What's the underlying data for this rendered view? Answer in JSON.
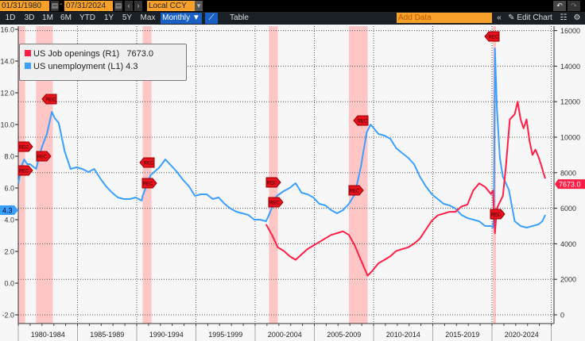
{
  "toolbar": {
    "start_date": "01/31/1980",
    "end_date": "07/31/2024",
    "dash": "-",
    "currency": "Local CCY",
    "ranges": [
      "1D",
      "3D",
      "1M",
      "6M",
      "YTD",
      "1Y",
      "5Y",
      "Max"
    ],
    "frequency": "Monthly ▼",
    "table": "Table",
    "add_data_placeholder": "Add Data",
    "edit_chart": "Edit Chart"
  },
  "legend": [
    {
      "label": "US Job openings (R1)",
      "value": "7673.0",
      "color": "#ff1e46"
    },
    {
      "label": "US unemployment (L1)",
      "value": "4.3",
      "color": "#3aa0ff"
    }
  ],
  "chart_data": {
    "type": "line",
    "x_tick_labels": [
      "1980-1984",
      "1985-1989",
      "1990-1994",
      "1995-1999",
      "2000-2004",
      "2005-2009",
      "2010-2014",
      "2015-2019",
      "2020-2024"
    ],
    "xlim": [
      "1980-01",
      "2024-12"
    ],
    "left_axis": {
      "ylim": [
        -2,
        16
      ],
      "ticks": [
        "16.0",
        "14.0",
        "12.0",
        "10.0",
        "8.0",
        "6.0",
        "4.0",
        "2.0",
        "0.0",
        "-2.0"
      ],
      "last_label": "4.3"
    },
    "right_axis": {
      "ylim": [
        0,
        16000
      ],
      "ticks": [
        "16000",
        "14000",
        "12000",
        "10000",
        "8000",
        "6000",
        "4000",
        "2000",
        "0"
      ],
      "last_label": "7673.0"
    },
    "grid": true,
    "legend_placement": "top-left",
    "recession_label": "REC",
    "recessions": [
      [
        "1980-01",
        "1980-07"
      ],
      [
        "1981-07",
        "1982-11"
      ],
      [
        "1990-07",
        "1991-03"
      ],
      [
        "2001-03",
        "2001-11"
      ],
      [
        "2007-12",
        "2009-06"
      ],
      [
        "2020-02",
        "2020-04"
      ]
    ],
    "series": [
      {
        "name": "US unemployment (L1)",
        "axis": "left",
        "color": "#3aa0ff",
        "points": [
          [
            "1980-01",
            6.3
          ],
          [
            "1980-05",
            7.5
          ],
          [
            "1980-07",
            7.8
          ],
          [
            "1980-10",
            7.5
          ],
          [
            "1981-01",
            7.5
          ],
          [
            "1981-07",
            7.2
          ],
          [
            "1982-01",
            8.6
          ],
          [
            "1982-06",
            9.4
          ],
          [
            "1982-11",
            10.8
          ],
          [
            "1983-02",
            10.4
          ],
          [
            "1983-06",
            10.1
          ],
          [
            "1983-12",
            8.3
          ],
          [
            "1984-06",
            7.2
          ],
          [
            "1984-12",
            7.3
          ],
          [
            "1985-06",
            7.2
          ],
          [
            "1985-12",
            7.0
          ],
          [
            "1986-06",
            7.2
          ],
          [
            "1986-12",
            6.6
          ],
          [
            "1987-06",
            6.1
          ],
          [
            "1987-12",
            5.7
          ],
          [
            "1988-06",
            5.4
          ],
          [
            "1988-12",
            5.3
          ],
          [
            "1989-06",
            5.3
          ],
          [
            "1989-12",
            5.4
          ],
          [
            "1990-06",
            5.2
          ],
          [
            "1990-07",
            5.5
          ],
          [
            "1991-03",
            6.8
          ],
          [
            "1991-12",
            7.3
          ],
          [
            "1992-06",
            7.8
          ],
          [
            "1992-12",
            7.4
          ],
          [
            "1993-06",
            7.0
          ],
          [
            "1993-12",
            6.5
          ],
          [
            "1994-06",
            6.1
          ],
          [
            "1994-12",
            5.5
          ],
          [
            "1995-06",
            5.6
          ],
          [
            "1995-12",
            5.6
          ],
          [
            "1996-06",
            5.3
          ],
          [
            "1996-12",
            5.4
          ],
          [
            "1997-06",
            5.0
          ],
          [
            "1997-12",
            4.7
          ],
          [
            "1998-06",
            4.5
          ],
          [
            "1998-12",
            4.4
          ],
          [
            "1999-06",
            4.3
          ],
          [
            "1999-12",
            4.0
          ],
          [
            "2000-06",
            4.0
          ],
          [
            "2000-12",
            3.9
          ],
          [
            "2001-03",
            4.3
          ],
          [
            "2001-11",
            5.5
          ],
          [
            "2002-06",
            5.8
          ],
          [
            "2002-12",
            6.0
          ],
          [
            "2003-06",
            6.3
          ],
          [
            "2003-12",
            5.7
          ],
          [
            "2004-06",
            5.6
          ],
          [
            "2004-12",
            5.4
          ],
          [
            "2005-06",
            5.0
          ],
          [
            "2005-12",
            4.9
          ],
          [
            "2006-06",
            4.6
          ],
          [
            "2006-12",
            4.4
          ],
          [
            "2007-06",
            4.6
          ],
          [
            "2007-12",
            5.0
          ],
          [
            "2008-06",
            5.6
          ],
          [
            "2008-12",
            7.3
          ],
          [
            "2009-06",
            9.5
          ],
          [
            "2009-10",
            10.0
          ],
          [
            "2010-06",
            9.4
          ],
          [
            "2010-12",
            9.3
          ],
          [
            "2011-06",
            9.1
          ],
          [
            "2011-12",
            8.5
          ],
          [
            "2012-06",
            8.2
          ],
          [
            "2012-12",
            7.9
          ],
          [
            "2013-06",
            7.5
          ],
          [
            "2013-12",
            6.7
          ],
          [
            "2014-06",
            6.1
          ],
          [
            "2014-12",
            5.6
          ],
          [
            "2015-06",
            5.3
          ],
          [
            "2015-12",
            5.0
          ],
          [
            "2016-06",
            4.9
          ],
          [
            "2016-12",
            4.7
          ],
          [
            "2017-06",
            4.3
          ],
          [
            "2017-12",
            4.1
          ],
          [
            "2018-06",
            4.0
          ],
          [
            "2018-12",
            3.9
          ],
          [
            "2019-06",
            3.6
          ],
          [
            "2019-12",
            3.6
          ],
          [
            "2020-02",
            3.5
          ],
          [
            "2020-03",
            4.4
          ],
          [
            "2020-04",
            14.8
          ],
          [
            "2020-06",
            11.0
          ],
          [
            "2020-09",
            7.9
          ],
          [
            "2020-12",
            6.7
          ],
          [
            "2021-06",
            5.9
          ],
          [
            "2021-12",
            3.9
          ],
          [
            "2022-06",
            3.6
          ],
          [
            "2022-12",
            3.5
          ],
          [
            "2023-06",
            3.6
          ],
          [
            "2023-12",
            3.7
          ],
          [
            "2024-04",
            3.9
          ],
          [
            "2024-07",
            4.3
          ]
        ]
      },
      {
        "name": "US Job openings (R1)",
        "axis": "right",
        "color": "#ff1e46",
        "points": [
          [
            "2000-12",
            5100
          ],
          [
            "2001-06",
            4500
          ],
          [
            "2001-12",
            3800
          ],
          [
            "2002-06",
            3600
          ],
          [
            "2002-12",
            3300
          ],
          [
            "2003-06",
            3100
          ],
          [
            "2003-12",
            3400
          ],
          [
            "2004-06",
            3700
          ],
          [
            "2004-12",
            3900
          ],
          [
            "2005-06",
            4100
          ],
          [
            "2005-12",
            4300
          ],
          [
            "2006-06",
            4500
          ],
          [
            "2006-12",
            4600
          ],
          [
            "2007-06",
            4700
          ],
          [
            "2007-12",
            4500
          ],
          [
            "2008-06",
            3900
          ],
          [
            "2008-12",
            3100
          ],
          [
            "2009-07",
            2200
          ],
          [
            "2009-12",
            2500
          ],
          [
            "2010-06",
            2900
          ],
          [
            "2010-12",
            3100
          ],
          [
            "2011-06",
            3300
          ],
          [
            "2011-12",
            3600
          ],
          [
            "2012-06",
            3700
          ],
          [
            "2012-12",
            3800
          ],
          [
            "2013-06",
            4000
          ],
          [
            "2013-12",
            4300
          ],
          [
            "2014-06",
            4800
          ],
          [
            "2014-12",
            5300
          ],
          [
            "2015-06",
            5600
          ],
          [
            "2015-12",
            5700
          ],
          [
            "2016-06",
            5800
          ],
          [
            "2016-12",
            5800
          ],
          [
            "2017-06",
            6100
          ],
          [
            "2017-12",
            6200
          ],
          [
            "2018-06",
            7000
          ],
          [
            "2018-12",
            7400
          ],
          [
            "2019-06",
            7200
          ],
          [
            "2019-12",
            6800
          ],
          [
            "2020-02",
            7000
          ],
          [
            "2020-04",
            4600
          ],
          [
            "2020-06",
            6000
          ],
          [
            "2020-12",
            6700
          ],
          [
            "2021-03",
            8300
          ],
          [
            "2021-07",
            11000
          ],
          [
            "2021-12",
            11300
          ],
          [
            "2022-03",
            12000
          ],
          [
            "2022-06",
            11000
          ],
          [
            "2022-09",
            10500
          ],
          [
            "2022-12",
            11000
          ],
          [
            "2023-03",
            9800
          ],
          [
            "2023-06",
            9000
          ],
          [
            "2023-09",
            9300
          ],
          [
            "2023-12",
            8900
          ],
          [
            "2024-03",
            8400
          ],
          [
            "2024-05",
            8000
          ],
          [
            "2024-07",
            7673
          ]
        ]
      }
    ]
  }
}
